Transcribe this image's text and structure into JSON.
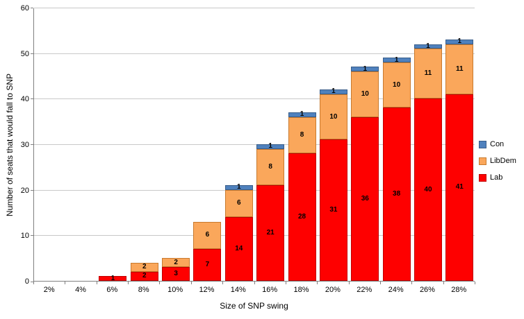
{
  "chart_data": {
    "type": "bar",
    "stacked": true,
    "title": "",
    "xlabel": "Size of SNP swing",
    "ylabel": "Number of seats that would fall to SNP",
    "categories": [
      "2%",
      "4%",
      "6%",
      "8%",
      "10%",
      "12%",
      "14%",
      "16%",
      "18%",
      "20%",
      "22%",
      "24%",
      "26%",
      "28%"
    ],
    "series": [
      {
        "name": "Lab",
        "color": "#fe0000",
        "border": "#c00000",
        "values": [
          0,
          0,
          1,
          2,
          3,
          7,
          14,
          21,
          28,
          31,
          36,
          38,
          40,
          41
        ]
      },
      {
        "name": "LibDem",
        "color": "#faa75b",
        "border": "#c87a2e",
        "values": [
          0,
          0,
          0,
          2,
          2,
          6,
          6,
          8,
          8,
          10,
          10,
          10,
          11,
          11
        ]
      },
      {
        "name": "Con",
        "color": "#4f81bd",
        "border": "#385d8a",
        "values": [
          0,
          0,
          0,
          0,
          0,
          0,
          1,
          1,
          1,
          1,
          1,
          1,
          1,
          1
        ]
      }
    ],
    "totals": [
      0,
      0,
      1,
      4,
      5,
      13,
      21,
      30,
      37,
      42,
      47,
      49,
      52,
      53
    ],
    "legend_order": [
      "Con",
      "LibDem",
      "Lab"
    ],
    "legend_position": "right",
    "grid": true,
    "ylim": [
      0,
      60
    ],
    "ytick_step": 10,
    "yticks": [
      0,
      10,
      20,
      30,
      40,
      50,
      60
    ],
    "data_labels": true,
    "axis_color": "#7f7f7f",
    "gridline_color": "#c8c8c8"
  }
}
